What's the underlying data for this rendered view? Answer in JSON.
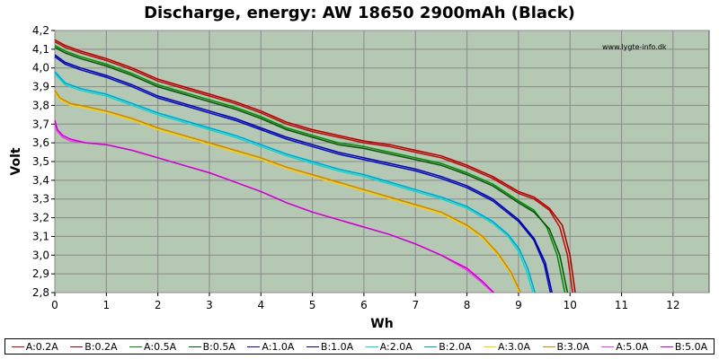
{
  "chart_data": {
    "type": "line",
    "title": "Discharge, energy: AW 18650 2900mAh (Black)",
    "xlabel": "Wh",
    "ylabel": "Volt",
    "watermark": "www.lygte-info.dk",
    "xlim": [
      0,
      12.7
    ],
    "ylim": [
      2.8,
      4.2
    ],
    "xticks": [
      "0",
      "1",
      "2",
      "3",
      "4",
      "5",
      "6",
      "7",
      "8",
      "9",
      "10",
      "11",
      "12"
    ],
    "yticks": [
      "2,8",
      "2,9",
      "3,0",
      "3,1",
      "3,2",
      "3,3",
      "3,4",
      "3,5",
      "3,6",
      "3,7",
      "3,8",
      "3,9",
      "4,0",
      "4,1",
      "4,2"
    ],
    "grid": true,
    "legend_position": "bottom",
    "series": [
      {
        "name": "A:0.2A",
        "color": "#cc0000",
        "points": [
          [
            0,
            4.14
          ],
          [
            0.2,
            4.11
          ],
          [
            0.5,
            4.08
          ],
          [
            1,
            4.04
          ],
          [
            1.5,
            3.99
          ],
          [
            2,
            3.93
          ],
          [
            2.5,
            3.89
          ],
          [
            3,
            3.85
          ],
          [
            3.5,
            3.81
          ],
          [
            4,
            3.76
          ],
          [
            4.5,
            3.7
          ],
          [
            5,
            3.66
          ],
          [
            5.5,
            3.63
          ],
          [
            6,
            3.6
          ],
          [
            6.5,
            3.58
          ],
          [
            7,
            3.55
          ],
          [
            7.5,
            3.52
          ],
          [
            8,
            3.47
          ],
          [
            8.5,
            3.41
          ],
          [
            9,
            3.33
          ],
          [
            9.3,
            3.3
          ],
          [
            9.6,
            3.24
          ],
          [
            9.8,
            3.15
          ],
          [
            9.95,
            3.0
          ],
          [
            10.05,
            2.8
          ]
        ]
      },
      {
        "name": "B:0.2A",
        "color": "#a00000",
        "points": [
          [
            0,
            4.15
          ],
          [
            0.2,
            4.12
          ],
          [
            0.5,
            4.09
          ],
          [
            1,
            4.05
          ],
          [
            1.5,
            4.0
          ],
          [
            2,
            3.94
          ],
          [
            2.5,
            3.9
          ],
          [
            3,
            3.86
          ],
          [
            3.5,
            3.82
          ],
          [
            4,
            3.77
          ],
          [
            4.5,
            3.71
          ],
          [
            5,
            3.67
          ],
          [
            5.5,
            3.64
          ],
          [
            6,
            3.61
          ],
          [
            6.5,
            3.59
          ],
          [
            7,
            3.56
          ],
          [
            7.5,
            3.53
          ],
          [
            8,
            3.48
          ],
          [
            8.5,
            3.42
          ],
          [
            9,
            3.34
          ],
          [
            9.3,
            3.31
          ],
          [
            9.6,
            3.25
          ],
          [
            9.85,
            3.16
          ],
          [
            10.0,
            3.0
          ],
          [
            10.1,
            2.8
          ]
        ]
      },
      {
        "name": "A:0.5A",
        "color": "#008800",
        "points": [
          [
            0,
            4.12
          ],
          [
            0.2,
            4.09
          ],
          [
            0.5,
            4.06
          ],
          [
            1,
            4.02
          ],
          [
            1.5,
            3.97
          ],
          [
            2,
            3.91
          ],
          [
            2.5,
            3.87
          ],
          [
            3,
            3.83
          ],
          [
            3.5,
            3.79
          ],
          [
            4,
            3.74
          ],
          [
            4.5,
            3.68
          ],
          [
            5,
            3.64
          ],
          [
            5.5,
            3.6
          ],
          [
            6,
            3.58
          ],
          [
            6.5,
            3.55
          ],
          [
            7,
            3.52
          ],
          [
            7.5,
            3.49
          ],
          [
            8,
            3.44
          ],
          [
            8.5,
            3.38
          ],
          [
            9,
            3.29
          ],
          [
            9.3,
            3.24
          ],
          [
            9.55,
            3.15
          ],
          [
            9.75,
            3.0
          ],
          [
            9.9,
            2.8
          ]
        ]
      },
      {
        "name": "B:0.5A",
        "color": "#005500",
        "points": [
          [
            0,
            4.11
          ],
          [
            0.2,
            4.08
          ],
          [
            0.5,
            4.05
          ],
          [
            1,
            4.01
          ],
          [
            1.5,
            3.96
          ],
          [
            2,
            3.9
          ],
          [
            2.5,
            3.86
          ],
          [
            3,
            3.82
          ],
          [
            3.5,
            3.78
          ],
          [
            4,
            3.73
          ],
          [
            4.5,
            3.67
          ],
          [
            5,
            3.63
          ],
          [
            5.5,
            3.59
          ],
          [
            6,
            3.57
          ],
          [
            6.5,
            3.54
          ],
          [
            7,
            3.51
          ],
          [
            7.5,
            3.48
          ],
          [
            8,
            3.43
          ],
          [
            8.5,
            3.37
          ],
          [
            9,
            3.28
          ],
          [
            9.3,
            3.23
          ],
          [
            9.6,
            3.14
          ],
          [
            9.8,
            3.0
          ],
          [
            9.95,
            2.8
          ]
        ]
      },
      {
        "name": "A:1.0A",
        "color": "#0000dd",
        "points": [
          [
            0,
            4.06
          ],
          [
            0.2,
            4.02
          ],
          [
            0.5,
            3.99
          ],
          [
            1,
            3.95
          ],
          [
            1.5,
            3.9
          ],
          [
            2,
            3.84
          ],
          [
            2.5,
            3.8
          ],
          [
            3,
            3.76
          ],
          [
            3.5,
            3.72
          ],
          [
            4,
            3.67
          ],
          [
            4.5,
            3.62
          ],
          [
            5,
            3.58
          ],
          [
            5.5,
            3.54
          ],
          [
            6,
            3.51
          ],
          [
            6.5,
            3.48
          ],
          [
            7,
            3.45
          ],
          [
            7.5,
            3.41
          ],
          [
            8,
            3.36
          ],
          [
            8.5,
            3.29
          ],
          [
            9,
            3.18
          ],
          [
            9.3,
            3.08
          ],
          [
            9.5,
            2.95
          ],
          [
            9.62,
            2.8
          ]
        ]
      },
      {
        "name": "B:1.0A",
        "color": "#000088",
        "points": [
          [
            0,
            4.07
          ],
          [
            0.2,
            4.03
          ],
          [
            0.5,
            4.0
          ],
          [
            1,
            3.96
          ],
          [
            1.5,
            3.91
          ],
          [
            2,
            3.85
          ],
          [
            2.5,
            3.81
          ],
          [
            3,
            3.77
          ],
          [
            3.5,
            3.73
          ],
          [
            4,
            3.68
          ],
          [
            4.5,
            3.63
          ],
          [
            5,
            3.59
          ],
          [
            5.5,
            3.55
          ],
          [
            6,
            3.52
          ],
          [
            6.5,
            3.49
          ],
          [
            7,
            3.46
          ],
          [
            7.5,
            3.42
          ],
          [
            8,
            3.37
          ],
          [
            8.5,
            3.3
          ],
          [
            9,
            3.19
          ],
          [
            9.3,
            3.09
          ],
          [
            9.52,
            2.96
          ],
          [
            9.65,
            2.8
          ]
        ]
      },
      {
        "name": "A:2.0A",
        "color": "#00dddd",
        "points": [
          [
            0,
            3.97
          ],
          [
            0.2,
            3.91
          ],
          [
            0.5,
            3.88
          ],
          [
            1,
            3.85
          ],
          [
            1.5,
            3.8
          ],
          [
            2,
            3.75
          ],
          [
            2.5,
            3.71
          ],
          [
            3,
            3.67
          ],
          [
            3.5,
            3.63
          ],
          [
            4,
            3.58
          ],
          [
            4.5,
            3.53
          ],
          [
            5,
            3.49
          ],
          [
            5.5,
            3.45
          ],
          [
            6,
            3.42
          ],
          [
            6.5,
            3.38
          ],
          [
            7,
            3.34
          ],
          [
            7.5,
            3.3
          ],
          [
            8,
            3.25
          ],
          [
            8.5,
            3.17
          ],
          [
            8.8,
            3.1
          ],
          [
            9.0,
            3.02
          ],
          [
            9.15,
            2.92
          ],
          [
            9.28,
            2.8
          ]
        ]
      },
      {
        "name": "B:2.0A",
        "color": "#00a0cc",
        "points": [
          [
            0,
            3.98
          ],
          [
            0.2,
            3.92
          ],
          [
            0.5,
            3.89
          ],
          [
            1,
            3.86
          ],
          [
            1.5,
            3.81
          ],
          [
            2,
            3.76
          ],
          [
            2.5,
            3.72
          ],
          [
            3,
            3.68
          ],
          [
            3.5,
            3.64
          ],
          [
            4,
            3.59
          ],
          [
            4.5,
            3.54
          ],
          [
            5,
            3.5
          ],
          [
            5.5,
            3.46
          ],
          [
            6,
            3.43
          ],
          [
            6.5,
            3.39
          ],
          [
            7,
            3.35
          ],
          [
            7.5,
            3.31
          ],
          [
            8,
            3.26
          ],
          [
            8.5,
            3.18
          ],
          [
            8.8,
            3.11
          ],
          [
            9.02,
            3.03
          ],
          [
            9.18,
            2.93
          ],
          [
            9.32,
            2.8
          ]
        ]
      },
      {
        "name": "A:3.0A",
        "color": "#ffcc00",
        "points": [
          [
            0,
            3.87
          ],
          [
            0.1,
            3.83
          ],
          [
            0.3,
            3.8
          ],
          [
            0.5,
            3.79
          ],
          [
            1,
            3.76
          ],
          [
            1.5,
            3.72
          ],
          [
            2,
            3.67
          ],
          [
            2.5,
            3.63
          ],
          [
            3,
            3.59
          ],
          [
            3.5,
            3.55
          ],
          [
            4,
            3.51
          ],
          [
            4.5,
            3.46
          ],
          [
            5,
            3.42
          ],
          [
            5.5,
            3.38
          ],
          [
            6,
            3.34
          ],
          [
            6.5,
            3.3
          ],
          [
            7,
            3.26
          ],
          [
            7.5,
            3.22
          ],
          [
            8,
            3.15
          ],
          [
            8.3,
            3.09
          ],
          [
            8.6,
            3.0
          ],
          [
            8.85,
            2.9
          ],
          [
            9.02,
            2.8
          ]
        ]
      },
      {
        "name": "B:3.0A",
        "color": "#cc8800",
        "points": [
          [
            0,
            3.88
          ],
          [
            0.1,
            3.84
          ],
          [
            0.3,
            3.81
          ],
          [
            0.5,
            3.8
          ],
          [
            1,
            3.77
          ],
          [
            1.5,
            3.73
          ],
          [
            2,
            3.68
          ],
          [
            2.5,
            3.64
          ],
          [
            3,
            3.6
          ],
          [
            3.5,
            3.56
          ],
          [
            4,
            3.52
          ],
          [
            4.5,
            3.47
          ],
          [
            5,
            3.43
          ],
          [
            5.5,
            3.39
          ],
          [
            6,
            3.35
          ],
          [
            6.5,
            3.31
          ],
          [
            7,
            3.27
          ],
          [
            7.5,
            3.23
          ],
          [
            8,
            3.16
          ],
          [
            8.3,
            3.1
          ],
          [
            8.6,
            3.01
          ],
          [
            8.85,
            2.91
          ],
          [
            9.04,
            2.8
          ]
        ]
      },
      {
        "name": "A:5.0A",
        "color": "#ff33ff",
        "points": [
          [
            0,
            3.7
          ],
          [
            0.05,
            3.66
          ],
          [
            0.15,
            3.63
          ],
          [
            0.3,
            3.61
          ],
          [
            0.6,
            3.6
          ],
          [
            1,
            3.59
          ],
          [
            1.5,
            3.56
          ],
          [
            2,
            3.52
          ],
          [
            2.5,
            3.48
          ],
          [
            3,
            3.44
          ],
          [
            3.5,
            3.39
          ],
          [
            4,
            3.34
          ],
          [
            4.5,
            3.28
          ],
          [
            5,
            3.23
          ],
          [
            5.5,
            3.19
          ],
          [
            6,
            3.15
          ],
          [
            6.5,
            3.11
          ],
          [
            7,
            3.06
          ],
          [
            7.5,
            3.0
          ],
          [
            8,
            2.92
          ],
          [
            8.3,
            2.85
          ],
          [
            8.5,
            2.8
          ]
        ]
      },
      {
        "name": "B:5.0A",
        "color": "#cc00cc",
        "points": [
          [
            0,
            3.72
          ],
          [
            0.05,
            3.67
          ],
          [
            0.15,
            3.64
          ],
          [
            0.3,
            3.62
          ],
          [
            0.6,
            3.6
          ],
          [
            1,
            3.59
          ],
          [
            1.5,
            3.56
          ],
          [
            2,
            3.52
          ],
          [
            2.5,
            3.48
          ],
          [
            3,
            3.44
          ],
          [
            3.5,
            3.39
          ],
          [
            4,
            3.34
          ],
          [
            4.5,
            3.28
          ],
          [
            5,
            3.23
          ],
          [
            5.5,
            3.19
          ],
          [
            6,
            3.15
          ],
          [
            6.5,
            3.11
          ],
          [
            7,
            3.06
          ],
          [
            7.5,
            3.0
          ],
          [
            8,
            2.93
          ],
          [
            8.3,
            2.86
          ],
          [
            8.52,
            2.8
          ]
        ]
      }
    ]
  }
}
